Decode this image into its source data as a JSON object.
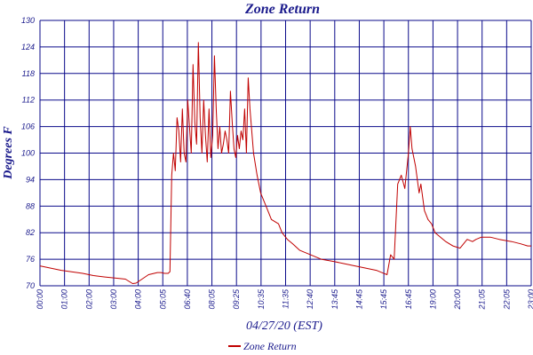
{
  "chart_data": {
    "type": "line",
    "title": "Zone Return",
    "xlabel": "04/27/20 (EST)",
    "ylabel": "Degrees F",
    "ylim": [
      70,
      130
    ],
    "yticks": [
      70,
      76,
      82,
      88,
      94,
      100,
      106,
      112,
      118,
      124,
      130
    ],
    "xlim": [
      "00:00",
      "23:00"
    ],
    "xticks": [
      "00:00",
      "01:00",
      "02:00",
      "03:00",
      "04:00",
      "05:05",
      "06:40",
      "08:05",
      "09:25",
      "10:35",
      "11:35",
      "12:40",
      "13:45",
      "14:45",
      "15:45",
      "16:45",
      "19:00",
      "20:00",
      "21:05",
      "22:05",
      "23:00"
    ],
    "grid": true,
    "legend_position": "bottom-center",
    "series": [
      {
        "name": "Zone Return",
        "color": "#c00000",
        "x": [
          "00:00",
          "01:00",
          "02:00",
          "02:30",
          "03:00",
          "04:00",
          "04:10",
          "04:20",
          "04:30",
          "05:05",
          "05:30",
          "05:40",
          "05:50",
          "06:00",
          "06:05",
          "06:10",
          "06:15",
          "06:20",
          "06:25",
          "06:30",
          "06:35",
          "06:40",
          "06:45",
          "06:50",
          "06:55",
          "07:00",
          "07:05",
          "07:10",
          "07:15",
          "07:20",
          "07:25",
          "07:30",
          "07:35",
          "07:40",
          "07:45",
          "07:50",
          "07:55",
          "08:00",
          "08:05",
          "08:10",
          "08:15",
          "08:20",
          "08:25",
          "08:30",
          "08:35",
          "08:40",
          "08:45",
          "08:50",
          "08:55",
          "09:00",
          "09:05",
          "09:10",
          "09:15",
          "09:20",
          "09:25",
          "09:30",
          "09:35",
          "09:40",
          "09:45",
          "09:50",
          "09:55",
          "10:00",
          "10:10",
          "10:20",
          "10:35",
          "10:50",
          "11:10",
          "11:20",
          "11:35",
          "11:50",
          "12:10",
          "12:40",
          "13:10",
          "13:45",
          "14:15",
          "14:45",
          "15:15",
          "15:45",
          "16:00",
          "16:15",
          "16:25",
          "16:35",
          "16:45",
          "16:55",
          "17:05",
          "17:15",
          "17:20",
          "17:25",
          "17:35",
          "17:45",
          "17:50",
          "18:00",
          "18:10",
          "18:20",
          "18:30",
          "18:45",
          "19:00",
          "19:20",
          "19:40",
          "20:00",
          "20:15",
          "20:25",
          "20:40",
          "20:55",
          "21:05",
          "21:30",
          "22:05",
          "22:30",
          "22:50",
          "23:00"
        ],
        "y": [
          74.5,
          73.5,
          72.8,
          72.3,
          72.0,
          71.5,
          71.0,
          70.5,
          70.6,
          72.5,
          73.0,
          73.0,
          72.8,
          72.8,
          73.2,
          95,
          100,
          96,
          108,
          105,
          98,
          110,
          100,
          98,
          112,
          106,
          100,
          120,
          107,
          102,
          125,
          108,
          100,
          112,
          104,
          98,
          110,
          99,
          104,
          122,
          110,
          101,
          106,
          100,
          102,
          105,
          103,
          100,
          114,
          107,
          101,
          99,
          104,
          101,
          105,
          103,
          110,
          100,
          117,
          110,
          105,
          100,
          95,
          91,
          88,
          85,
          84,
          82,
          80.5,
          79.5,
          78.0,
          77.0,
          76.0,
          75.5,
          75.0,
          74.5,
          74.0,
          73.5,
          73.0,
          72.5,
          77,
          76,
          93,
          95,
          92,
          100,
          106,
          101,
          97,
          91,
          93,
          87,
          85,
          84,
          82,
          81,
          80,
          79,
          78.5,
          80.5,
          80,
          80.5,
          81,
          81,
          81,
          80.5,
          80,
          79.5,
          79,
          79
        ]
      }
    ]
  }
}
